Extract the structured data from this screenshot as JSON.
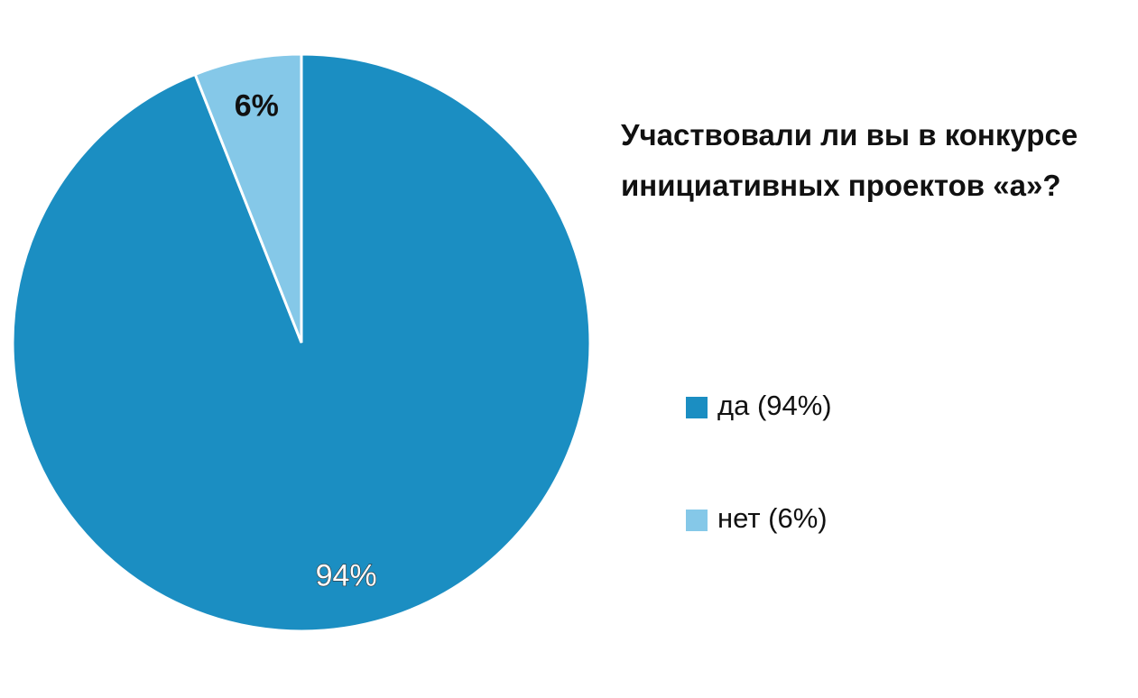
{
  "chart_data": {
    "type": "pie",
    "title": "Участвовали ли вы в конкурсе инициативных проектов «а»?",
    "categories": [
      "да (94%)",
      "нет (6%)"
    ],
    "values": [
      94,
      6
    ],
    "value_labels": [
      "94%",
      "6%"
    ],
    "colors": [
      "#1b8ec2",
      "#85c8e8"
    ]
  }
}
